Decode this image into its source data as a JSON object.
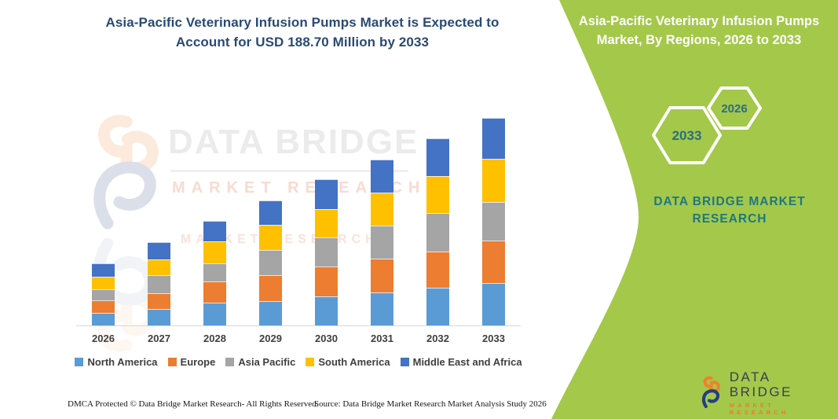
{
  "header": {
    "line1": "Asia-Pacific Veterinary Infusion Pumps Market is Expected to",
    "line2": "Account for USD 188.70 Million by 2033"
  },
  "side_panel": {
    "bg_color": "#A4C84A",
    "title_line1": "Asia-Pacific Veterinary Infusion Pumps",
    "title_line2": "Market, By Regions, 2026 to 2033",
    "hexagon_back_label": "2026",
    "hexagon_front_label": "2033",
    "hexagon_text_color": "#2C6E80",
    "brand_line1": "DATA BRIDGE MARKET",
    "brand_line2": "RESEARCH"
  },
  "watermark": {
    "title": "DATA BRIDGE",
    "subtitle": "MARKET RESEARCH"
  },
  "chart_data": {
    "type": "bar",
    "stacked": true,
    "unit": "USD Million",
    "title": "Asia-Pacific Veterinary Infusion Pumps Market, By Regions, 2026 to 2033",
    "categories": [
      "2026",
      "2027",
      "2028",
      "2029",
      "2030",
      "2031",
      "2032",
      "2033"
    ],
    "series": [
      {
        "name": "North America",
        "color": "#5B9BD5",
        "values": [
          11.4,
          15.0,
          20.7,
          22.4,
          26.4,
          30.2,
          34.3,
          38.6
        ]
      },
      {
        "name": "Europe",
        "color": "#ED7D31",
        "values": [
          11.7,
          14.3,
          19.1,
          23.4,
          27.2,
          30.2,
          32.9,
          38.8
        ]
      },
      {
        "name": "Asia Pacific",
        "color": "#A5A5A5",
        "values": [
          9.8,
          16.6,
          16.7,
          22.7,
          26.7,
          30.5,
          35.0,
          35.0
        ]
      },
      {
        "name": "South America",
        "color": "#FFC000",
        "values": [
          11.7,
          14.3,
          19.8,
          22.7,
          25.7,
          29.8,
          33.4,
          39.3
        ]
      },
      {
        "name": "Middle East and Africa",
        "color": "#4472C4",
        "values": [
          11.7,
          15.8,
          18.4,
          22.6,
          26.7,
          29.9,
          34.7,
          37.0
        ]
      }
    ],
    "totals": [
      56.3,
      76.0,
      94.7,
      113.8,
      132.7,
      150.6,
      170.3,
      188.7
    ],
    "annotation": "2033 total = USD 188.70 Million",
    "ylim": [
      0,
      200
    ],
    "grid": false,
    "legend_position": "bottom"
  },
  "footer": {
    "left": "DMCA Protected © Data Bridge Market Research-  All Rights Reserved.",
    "right": "Source: Data Bridge Market Research  Market Analysis Study 2026"
  },
  "logo": {
    "name": "DATA BRIDGE",
    "tagline": "MARKET RESEARCH"
  }
}
